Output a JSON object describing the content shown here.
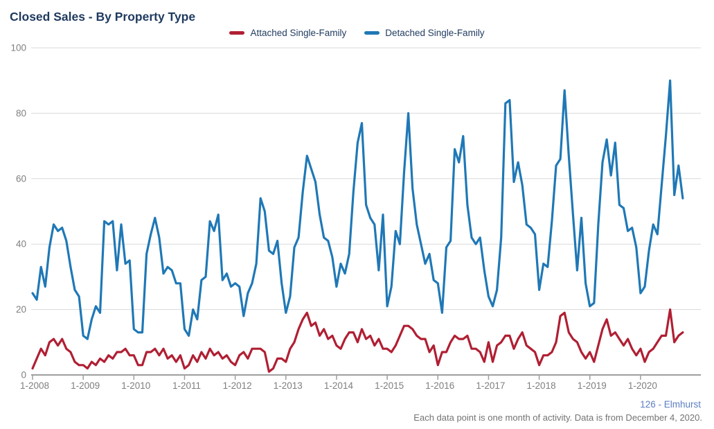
{
  "header": {
    "title": "Closed Sales - By Property Type"
  },
  "footer": {
    "attribution": "126 - Elmhurst",
    "note": "Each data point is one month of activity. Data is from December 4, 2020."
  },
  "chart_data": {
    "type": "line",
    "title": "Closed Sales - By Property Type",
    "x_unit": "month",
    "start_month": "1-2008",
    "end_month": "11-2020",
    "points_per_series": 155,
    "x_tick_labels": [
      "1-2008",
      "1-2009",
      "1-2010",
      "1-2011",
      "1-2012",
      "1-2013",
      "1-2014",
      "1-2015",
      "1-2016",
      "1-2017",
      "1-2018",
      "1-2019",
      "1-2020"
    ],
    "y_ticks": [
      0,
      20,
      40,
      60,
      80,
      100
    ],
    "ylim": [
      0,
      100
    ],
    "grid": "horizontal",
    "legend_position": "top-center",
    "colors": {
      "grid": "#D9D9D9",
      "axis": "#9E9E9E",
      "tick_text": "#7F7F7F"
    },
    "series": [
      {
        "name": "Attached Single-Family",
        "color": "#B01F33",
        "values": [
          2,
          5,
          8,
          6,
          10,
          11,
          9,
          11,
          8,
          7,
          4,
          3,
          3,
          2,
          4,
          3,
          5,
          4,
          6,
          5,
          7,
          7,
          8,
          6,
          6,
          3,
          3,
          7,
          7,
          8,
          6,
          8,
          5,
          6,
          4,
          6,
          2,
          3,
          6,
          4,
          7,
          5,
          8,
          6,
          7,
          5,
          6,
          4,
          3,
          6,
          7,
          5,
          8,
          8,
          8,
          7,
          1,
          2,
          5,
          5,
          4,
          8,
          10,
          14,
          17,
          19,
          15,
          16,
          12,
          14,
          11,
          12,
          9,
          8,
          11,
          13,
          13,
          10,
          14,
          11,
          12,
          9,
          11,
          8,
          8,
          7,
          9,
          12,
          15,
          15,
          14,
          12,
          11,
          11,
          7,
          9,
          3,
          7,
          7,
          10,
          12,
          11,
          11,
          12,
          8,
          8,
          7,
          4,
          10,
          4,
          9,
          10,
          12,
          12,
          8,
          11,
          13,
          9,
          8,
          7,
          3,
          6,
          6,
          7,
          10,
          18,
          19,
          13,
          11,
          10,
          7,
          5,
          7,
          4,
          9,
          14,
          17,
          12,
          13,
          11,
          9,
          11,
          8,
          6,
          8,
          4,
          7,
          8,
          10,
          12,
          12,
          20,
          10,
          12,
          13
        ]
      },
      {
        "name": "Detached Single-Family",
        "color": "#1F78B6",
        "values": [
          25,
          23,
          33,
          27,
          39,
          46,
          44,
          45,
          41,
          33,
          26,
          24,
          12,
          11,
          17,
          21,
          19,
          47,
          46,
          47,
          32,
          46,
          34,
          35,
          14,
          13,
          13,
          37,
          43,
          48,
          42,
          31,
          33,
          32,
          28,
          28,
          14,
          12,
          20,
          17,
          29,
          30,
          47,
          44,
          49,
          29,
          31,
          27,
          28,
          27,
          18,
          25,
          28,
          34,
          54,
          50,
          38,
          37,
          41,
          28,
          19,
          24,
          39,
          42,
          56,
          67,
          63,
          59,
          49,
          42,
          41,
          36,
          27,
          34,
          31,
          37,
          56,
          71,
          77,
          52,
          48,
          46,
          32,
          49,
          21,
          27,
          44,
          40,
          62,
          80,
          57,
          46,
          40,
          34,
          37,
          29,
          28,
          19,
          39,
          41,
          69,
          65,
          73,
          52,
          42,
          40,
          42,
          32,
          24,
          21,
          26,
          42,
          83,
          84,
          59,
          65,
          58,
          46,
          45,
          43,
          26,
          34,
          33,
          47,
          64,
          66,
          87,
          67,
          49,
          32,
          48,
          28,
          21,
          22,
          46,
          65,
          72,
          61,
          71,
          52,
          51,
          44,
          45,
          39,
          25,
          27,
          38,
          46,
          43,
          58,
          73,
          90,
          55,
          64,
          54
        ]
      }
    ]
  }
}
